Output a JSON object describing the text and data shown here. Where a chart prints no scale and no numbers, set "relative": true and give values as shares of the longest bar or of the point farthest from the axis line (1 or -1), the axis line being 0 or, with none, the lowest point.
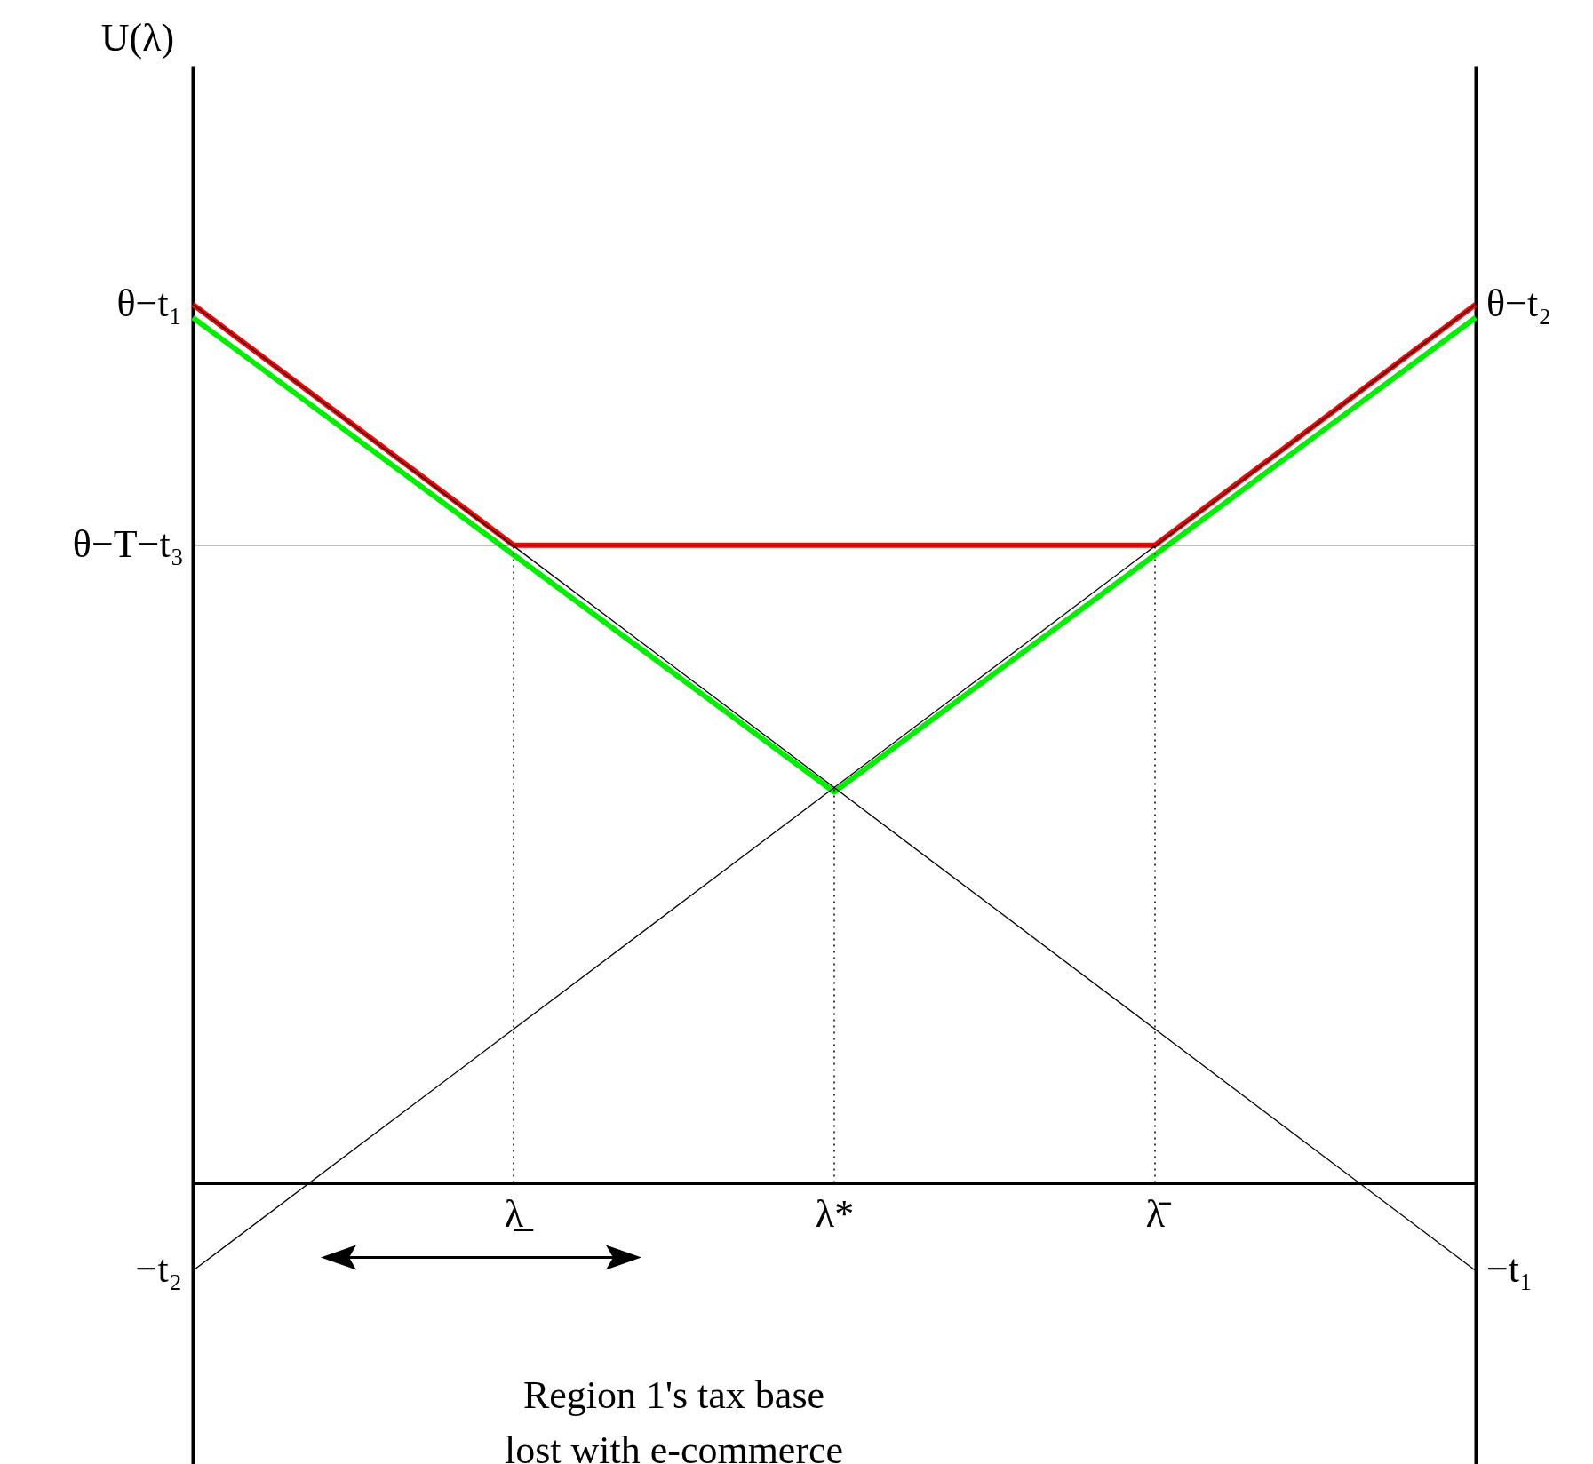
{
  "chart_data": {
    "type": "line",
    "relative": true,
    "categories": [
      null,
      "λ̲",
      "λ*",
      "λ̄",
      null
    ],
    "series": [
      {
        "color": "#00ee00",
        "values": [
          0.985,
          0.715,
          0.445,
          0.715,
          0.985
        ]
      },
      {
        "color": "#ff0000",
        "values": [
          1,
          0.726,
          0.726,
          0.726,
          1
        ]
      },
      {
        "color": "#000000",
        "values": [
          1,
          0.725,
          0.45,
          0.175,
          -0.1
        ]
      },
      {
        "color": "#000000",
        "values": [
          -0.1,
          0.175,
          0.45,
          0.725,
          1
        ]
      },
      {
        "color": "#000000",
        "x": [
          "λ̲",
          "λ̲"
        ],
        "values": [
          0,
          0.726
        ],
        "line_style": "dotted"
      },
      {
        "color": "#000000",
        "x": [
          "λ*",
          "λ*"
        ],
        "values": [
          0,
          0.45
        ],
        "line_style": "dotted"
      },
      {
        "color": "#000000",
        "x": [
          "λ̄",
          "λ̄"
        ],
        "values": [
          0,
          0.726
        ],
        "line_style": "dotted"
      }
    ],
    "ref_lines": [
      {
        "axis": "y",
        "value": 0.726,
        "label": "θ−T−t₃",
        "color": "#000000"
      }
    ],
    "annotations": [
      "U(λ)",
      "θ−t₁",
      "−t₂",
      "θ−t₂",
      "−t₁",
      "Region 1's tax base\nlost with e-commerce"
    ],
    "line_style": "solid"
  }
}
